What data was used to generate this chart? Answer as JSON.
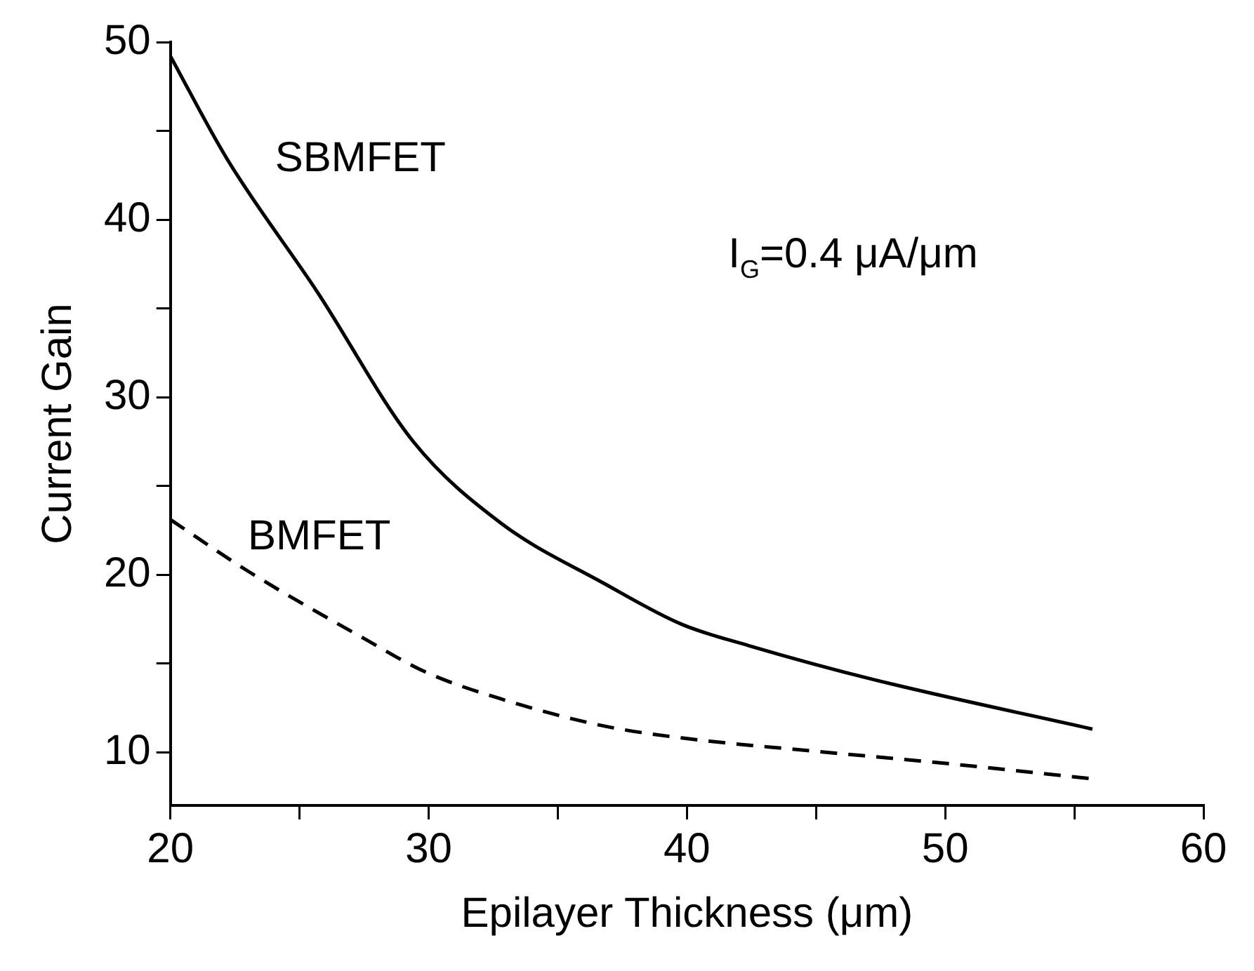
{
  "chart_data": {
    "type": "line",
    "xlabel": "Epilayer Thickness (μm)",
    "ylabel": "Current Gain",
    "annotations": [
      "I$_{G}$=0.4 μA/μm"
    ],
    "xlim": [
      20,
      60
    ],
    "xticks": [
      20,
      {
        "value": 25,
        "label": null
      },
      30,
      {
        "value": 35,
        "label": null
      },
      40,
      {
        "value": 45,
        "label": null
      },
      50,
      {
        "value": 55,
        "label": null
      },
      60
    ],
    "ylim": [
      7,
      50
    ],
    "yticks": [
      10,
      {
        "value": 15,
        "label": null
      },
      20,
      {
        "value": 25,
        "label": null
      },
      30,
      {
        "value": 35,
        "label": null
      },
      40,
      {
        "value": 45,
        "label": null
      },
      50
    ],
    "grid": false,
    "legend": false,
    "marker": "none",
    "series": [
      {
        "name": "SBMFET",
        "color": "#000000",
        "line_style": "solid",
        "x": [
          20,
          22.2,
          25.7,
          29.4,
          32.8,
          36.8,
          39.8,
          42.4,
          47.2,
          55.7
        ],
        "values": [
          49.2,
          43.4,
          35.9,
          27.5,
          22.9,
          19.5,
          17.2,
          16.0,
          14.1,
          11.3
        ]
      },
      {
        "name": "BMFET",
        "color": "#000000",
        "line_style": "dashed",
        "x": [
          20,
          23.0,
          27.5,
          29.9,
          32.8,
          36.7,
          39.8,
          44.6,
          49.8,
          55.7
        ],
        "values": [
          23.1,
          20.2,
          16.4,
          14.5,
          13.0,
          11.5,
          10.8,
          10.1,
          9.4,
          8.5
        ]
      }
    ]
  }
}
